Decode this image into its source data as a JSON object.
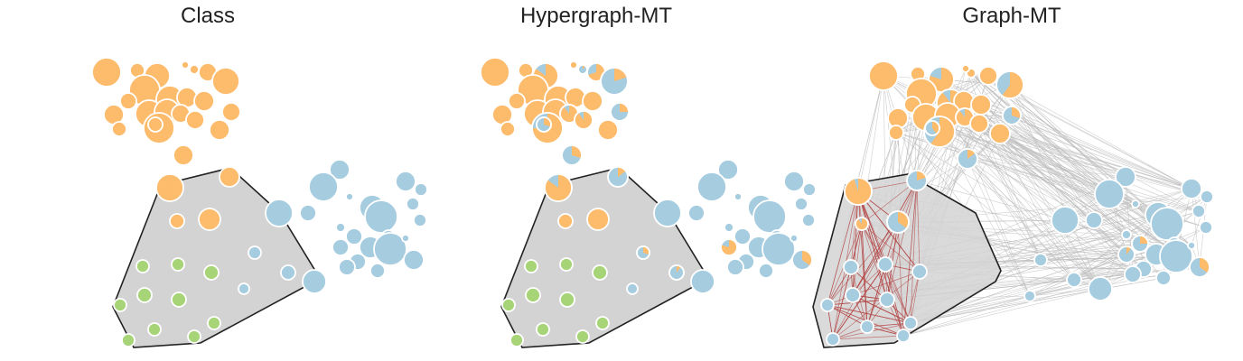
{
  "panels": [
    {
      "title": "Class"
    },
    {
      "title": "Hypergraph-MT"
    },
    {
      "title": "Graph-MT"
    }
  ],
  "colors": {
    "orange": "#fdbb6c",
    "blue": "#a6cce0",
    "green": "#a6d477",
    "hull_fill": "#d3d3d3",
    "hull_stroke": "#222222",
    "edge_gray": "#bdbdbd",
    "edge_red": "#b54a4a"
  },
  "legend_classes": [
    "orange-community",
    "blue-community",
    "green-community"
  ]
}
